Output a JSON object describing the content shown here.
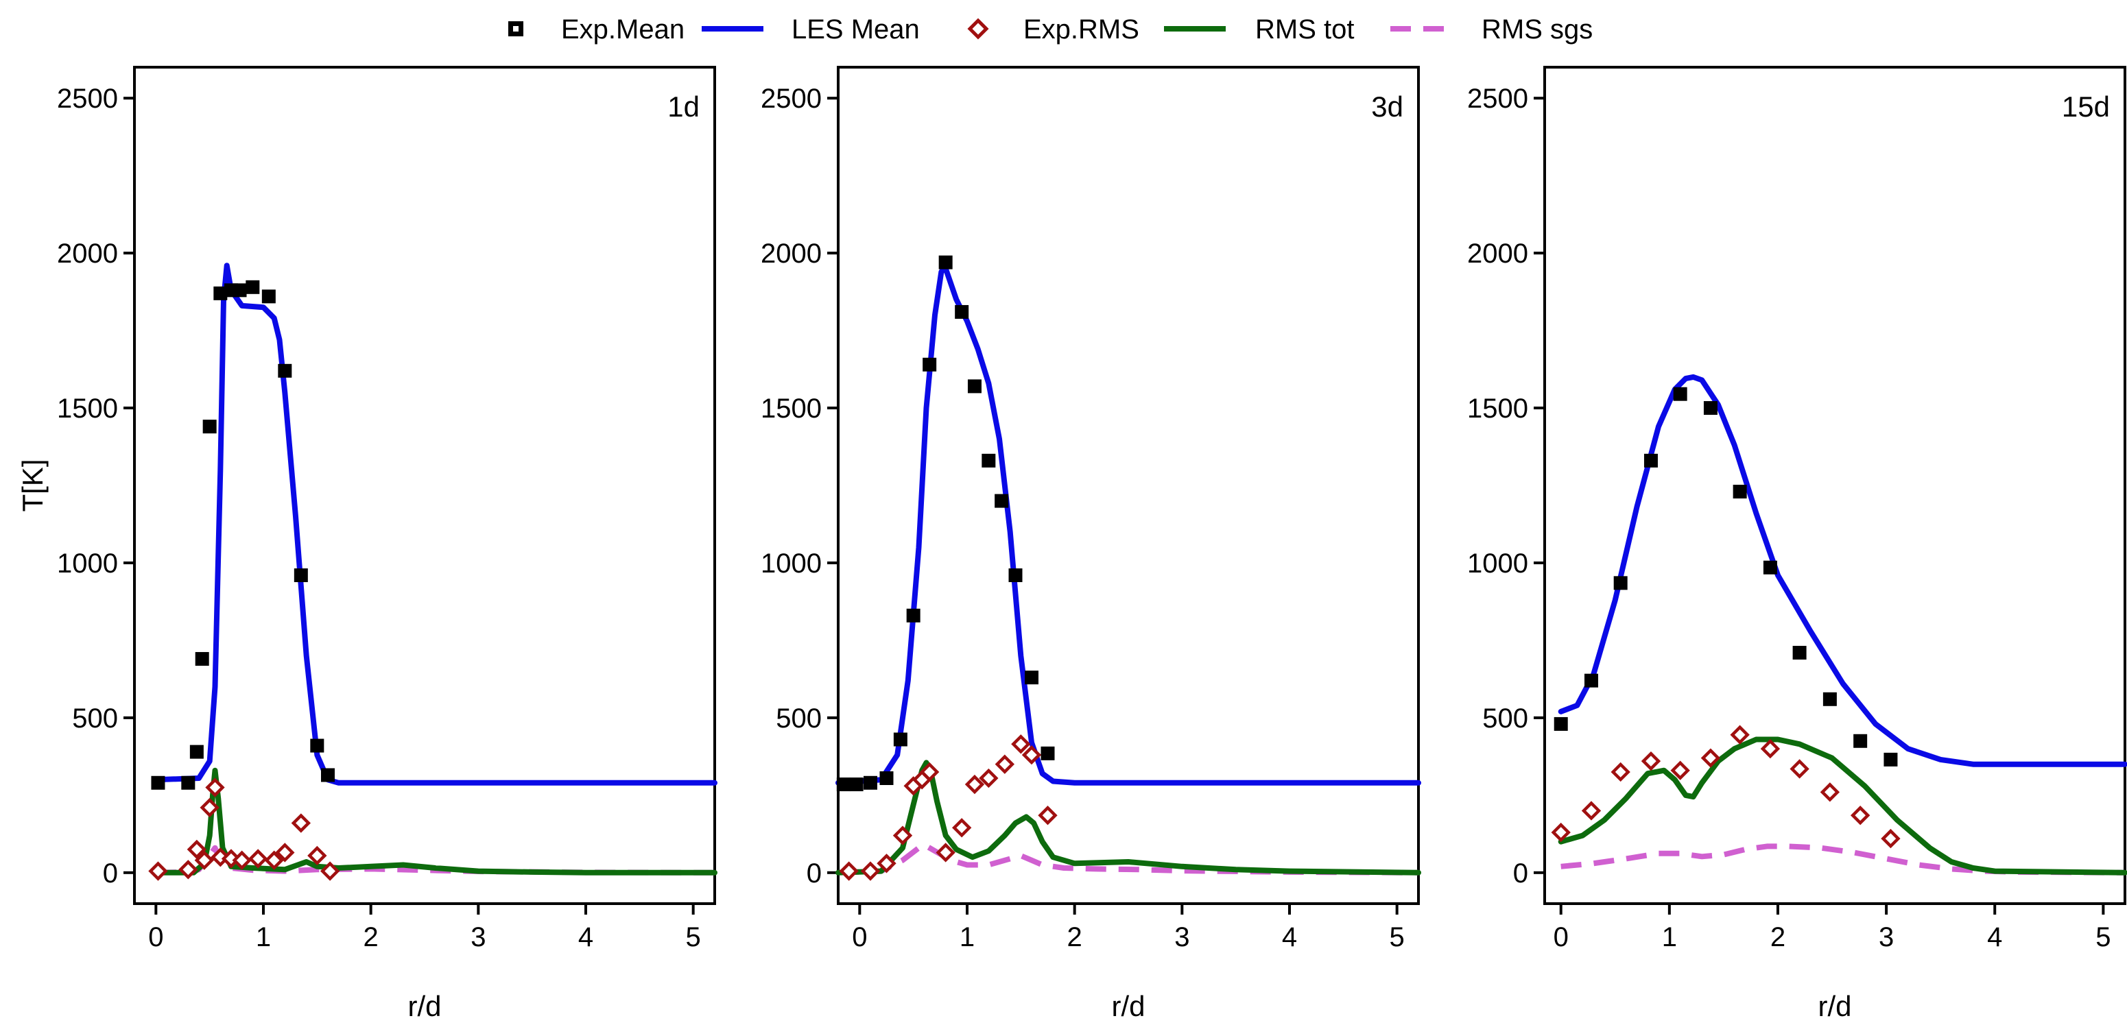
{
  "legend": {
    "items": [
      {
        "label": "Exp.Mean",
        "marker": "square",
        "color": "#000000"
      },
      {
        "label": "LES Mean",
        "marker": "line",
        "color": "#0a0ae6"
      },
      {
        "label": "Exp.RMS",
        "marker": "diamond",
        "color": "#a01010"
      },
      {
        "label": "RMS tot",
        "marker": "line",
        "color": "#0d6b0d"
      },
      {
        "label": "RMS sgs",
        "marker": "dashed-line",
        "color": "#d060d0"
      }
    ]
  },
  "chart_data": [
    {
      "type": "line",
      "panel_label": "1d",
      "xlabel": "r/d",
      "ylabel": "T[K]",
      "xlim": [
        -0.2,
        5.2
      ],
      "ylim": [
        -100,
        2600
      ],
      "xticks": [
        "0",
        "1",
        "2",
        "3",
        "4",
        "5"
      ],
      "yticks": [
        "0",
        "500",
        "1000",
        "1500",
        "2000",
        "2500"
      ],
      "series": [
        {
          "name": "Exp.Mean",
          "kind": "marker-square",
          "x": [
            0.02,
            0.3,
            0.38,
            0.43,
            0.5,
            0.6,
            0.7,
            0.78,
            0.9,
            1.05,
            1.2,
            1.35,
            1.5,
            1.6
          ],
          "y": [
            290,
            290,
            390,
            690,
            1440,
            1870,
            1880,
            1880,
            1890,
            1860,
            1620,
            960,
            410,
            315
          ]
        },
        {
          "name": "LES Mean",
          "kind": "line",
          "x": [
            0,
            0.4,
            0.5,
            0.55,
            0.6,
            0.63,
            0.66,
            0.7,
            0.8,
            1.0,
            1.1,
            1.15,
            1.2,
            1.3,
            1.4,
            1.5,
            1.6,
            1.7,
            2.0,
            3.0,
            4.0,
            5.2
          ],
          "y": [
            300,
            305,
            360,
            600,
            1300,
            1850,
            1960,
            1880,
            1830,
            1825,
            1790,
            1720,
            1550,
            1150,
            700,
            380,
            300,
            290,
            290,
            290,
            290,
            290
          ]
        },
        {
          "name": "Exp.RMS",
          "kind": "marker-diamond",
          "x": [
            0.02,
            0.3,
            0.38,
            0.45,
            0.5,
            0.55,
            0.6,
            0.7,
            0.8,
            0.95,
            1.1,
            1.2,
            1.35,
            1.5,
            1.62
          ],
          "y": [
            5,
            10,
            75,
            40,
            210,
            275,
            50,
            45,
            40,
            45,
            40,
            65,
            160,
            55,
            5
          ]
        },
        {
          "name": "RMS tot",
          "kind": "line",
          "x": [
            0,
            0.35,
            0.45,
            0.5,
            0.53,
            0.55,
            0.58,
            0.62,
            0.7,
            0.9,
            1.2,
            1.4,
            1.5,
            1.7,
            2.0,
            2.3,
            2.6,
            3.0,
            3.5,
            4.0,
            5.2
          ],
          "y": [
            0,
            0,
            30,
            120,
            260,
            330,
            240,
            80,
            20,
            15,
            10,
            35,
            20,
            15,
            20,
            25,
            15,
            5,
            2,
            0,
            0
          ]
        },
        {
          "name": "RMS sgs",
          "kind": "dashed-line",
          "x": [
            0,
            0.3,
            0.4,
            0.5,
            0.55,
            0.6,
            0.7,
            0.9,
            1.2,
            1.5,
            2.0,
            2.5,
            3.0,
            4.0,
            5.2
          ],
          "y": [
            0,
            2,
            10,
            55,
            80,
            40,
            15,
            8,
            5,
            10,
            12,
            8,
            4,
            1,
            0
          ]
        }
      ]
    },
    {
      "type": "line",
      "panel_label": "3d",
      "xlabel": "r/d",
      "ylabel": "",
      "xlim": [
        -0.2,
        5.2
      ],
      "ylim": [
        -100,
        2600
      ],
      "xticks": [
        "0",
        "1",
        "2",
        "3",
        "4",
        "5"
      ],
      "yticks": [
        "0",
        "500",
        "1000",
        "1500",
        "2000",
        "2500"
      ],
      "series": [
        {
          "name": "Exp.Mean",
          "kind": "marker-square",
          "x": [
            -0.15,
            -0.03,
            0.1,
            0.25,
            0.38,
            0.5,
            0.65,
            0.8,
            0.95,
            1.07,
            1.2,
            1.32,
            1.45,
            1.6,
            1.75
          ],
          "y": [
            285,
            285,
            290,
            305,
            430,
            830,
            1640,
            1970,
            1810,
            1570,
            1330,
            1200,
            960,
            630,
            385
          ]
        },
        {
          "name": "LES Mean",
          "kind": "line",
          "x": [
            -0.2,
            0.2,
            0.35,
            0.45,
            0.55,
            0.62,
            0.7,
            0.76,
            0.8,
            0.9,
            1.0,
            1.1,
            1.2,
            1.3,
            1.4,
            1.5,
            1.6,
            1.7,
            1.8,
            2.0,
            3.0,
            4.0,
            5.2
          ],
          "y": [
            290,
            300,
            380,
            620,
            1050,
            1500,
            1800,
            1940,
            1950,
            1850,
            1780,
            1690,
            1580,
            1400,
            1100,
            700,
            420,
            320,
            295,
            290,
            290,
            290,
            290
          ]
        },
        {
          "name": "Exp.RMS",
          "kind": "marker-diamond",
          "x": [
            -0.1,
            0.1,
            0.25,
            0.4,
            0.5,
            0.58,
            0.65,
            0.8,
            0.95,
            1.07,
            1.2,
            1.35,
            1.5,
            1.6,
            1.75
          ],
          "y": [
            5,
            5,
            30,
            120,
            280,
            300,
            325,
            65,
            145,
            285,
            305,
            350,
            415,
            380,
            185
          ]
        },
        {
          "name": "RMS tot",
          "kind": "line",
          "x": [
            -0.2,
            0.2,
            0.4,
            0.5,
            0.58,
            0.62,
            0.66,
            0.72,
            0.8,
            0.9,
            1.05,
            1.2,
            1.35,
            1.45,
            1.55,
            1.62,
            1.7,
            1.8,
            2.0,
            2.5,
            3.0,
            3.5,
            4.0,
            5.2
          ],
          "y": [
            0,
            5,
            80,
            220,
            330,
            355,
            330,
            230,
            120,
            75,
            50,
            70,
            120,
            160,
            180,
            160,
            100,
            50,
            30,
            35,
            20,
            10,
            5,
            0
          ]
        },
        {
          "name": "RMS sgs",
          "kind": "dashed-line",
          "x": [
            -0.2,
            0.2,
            0.4,
            0.55,
            0.6,
            0.7,
            0.85,
            1.0,
            1.2,
            1.4,
            1.5,
            1.6,
            1.7,
            1.9,
            2.2,
            2.6,
            3.0,
            4.0,
            5.2
          ],
          "y": [
            0,
            5,
            40,
            80,
            90,
            70,
            40,
            25,
            25,
            45,
            55,
            40,
            25,
            15,
            12,
            10,
            6,
            2,
            0
          ]
        }
      ]
    },
    {
      "type": "line",
      "panel_label": "15d",
      "xlabel": "r/d",
      "ylabel": "",
      "xlim": [
        -0.15,
        5.2
      ],
      "ylim": [
        -100,
        2600
      ],
      "xticks": [
        "0",
        "1",
        "2",
        "3",
        "4",
        "5"
      ],
      "yticks": [
        "0",
        "500",
        "1000",
        "1500",
        "2000",
        "2500"
      ],
      "series": [
        {
          "name": "Exp.Mean",
          "kind": "marker-square",
          "x": [
            0.0,
            0.28,
            0.55,
            0.83,
            1.1,
            1.38,
            1.65,
            1.93,
            2.2,
            2.48,
            2.76,
            3.04
          ],
          "y": [
            480,
            620,
            935,
            1330,
            1545,
            1500,
            1230,
            985,
            710,
            560,
            425,
            365
          ]
        },
        {
          "name": "LES Mean",
          "kind": "line",
          "x": [
            0,
            0.15,
            0.3,
            0.5,
            0.7,
            0.9,
            1.05,
            1.15,
            1.22,
            1.3,
            1.45,
            1.6,
            1.8,
            2.0,
            2.3,
            2.6,
            2.9,
            3.2,
            3.5,
            3.8,
            4.2,
            5.2
          ],
          "y": [
            520,
            540,
            640,
            880,
            1180,
            1440,
            1560,
            1595,
            1600,
            1590,
            1510,
            1380,
            1160,
            960,
            780,
            610,
            480,
            400,
            365,
            350,
            350,
            350
          ]
        },
        {
          "name": "Exp.RMS",
          "kind": "marker-diamond",
          "x": [
            0.0,
            0.28,
            0.55,
            0.83,
            1.1,
            1.38,
            1.65,
            1.93,
            2.2,
            2.48,
            2.76,
            3.04
          ],
          "y": [
            130,
            200,
            325,
            360,
            330,
            370,
            445,
            400,
            335,
            260,
            185,
            110
          ]
        },
        {
          "name": "RMS tot",
          "kind": "line",
          "x": [
            0,
            0.2,
            0.4,
            0.6,
            0.8,
            0.95,
            1.05,
            1.15,
            1.22,
            1.3,
            1.45,
            1.6,
            1.8,
            2.0,
            2.2,
            2.5,
            2.8,
            3.1,
            3.4,
            3.6,
            3.8,
            4.0,
            5.2
          ],
          "y": [
            100,
            120,
            170,
            240,
            320,
            330,
            300,
            250,
            245,
            290,
            360,
            400,
            430,
            430,
            415,
            370,
            280,
            170,
            80,
            35,
            15,
            5,
            0
          ]
        },
        {
          "name": "RMS sgs",
          "kind": "dashed-line",
          "x": [
            0,
            0.3,
            0.6,
            0.9,
            1.1,
            1.3,
            1.5,
            1.7,
            1.9,
            2.1,
            2.4,
            2.7,
            3.0,
            3.3,
            3.6,
            3.9,
            4.2,
            5.2
          ],
          "y": [
            20,
            30,
            45,
            62,
            62,
            52,
            58,
            75,
            85,
            85,
            80,
            65,
            45,
            25,
            12,
            5,
            2,
            0
          ]
        }
      ]
    }
  ]
}
